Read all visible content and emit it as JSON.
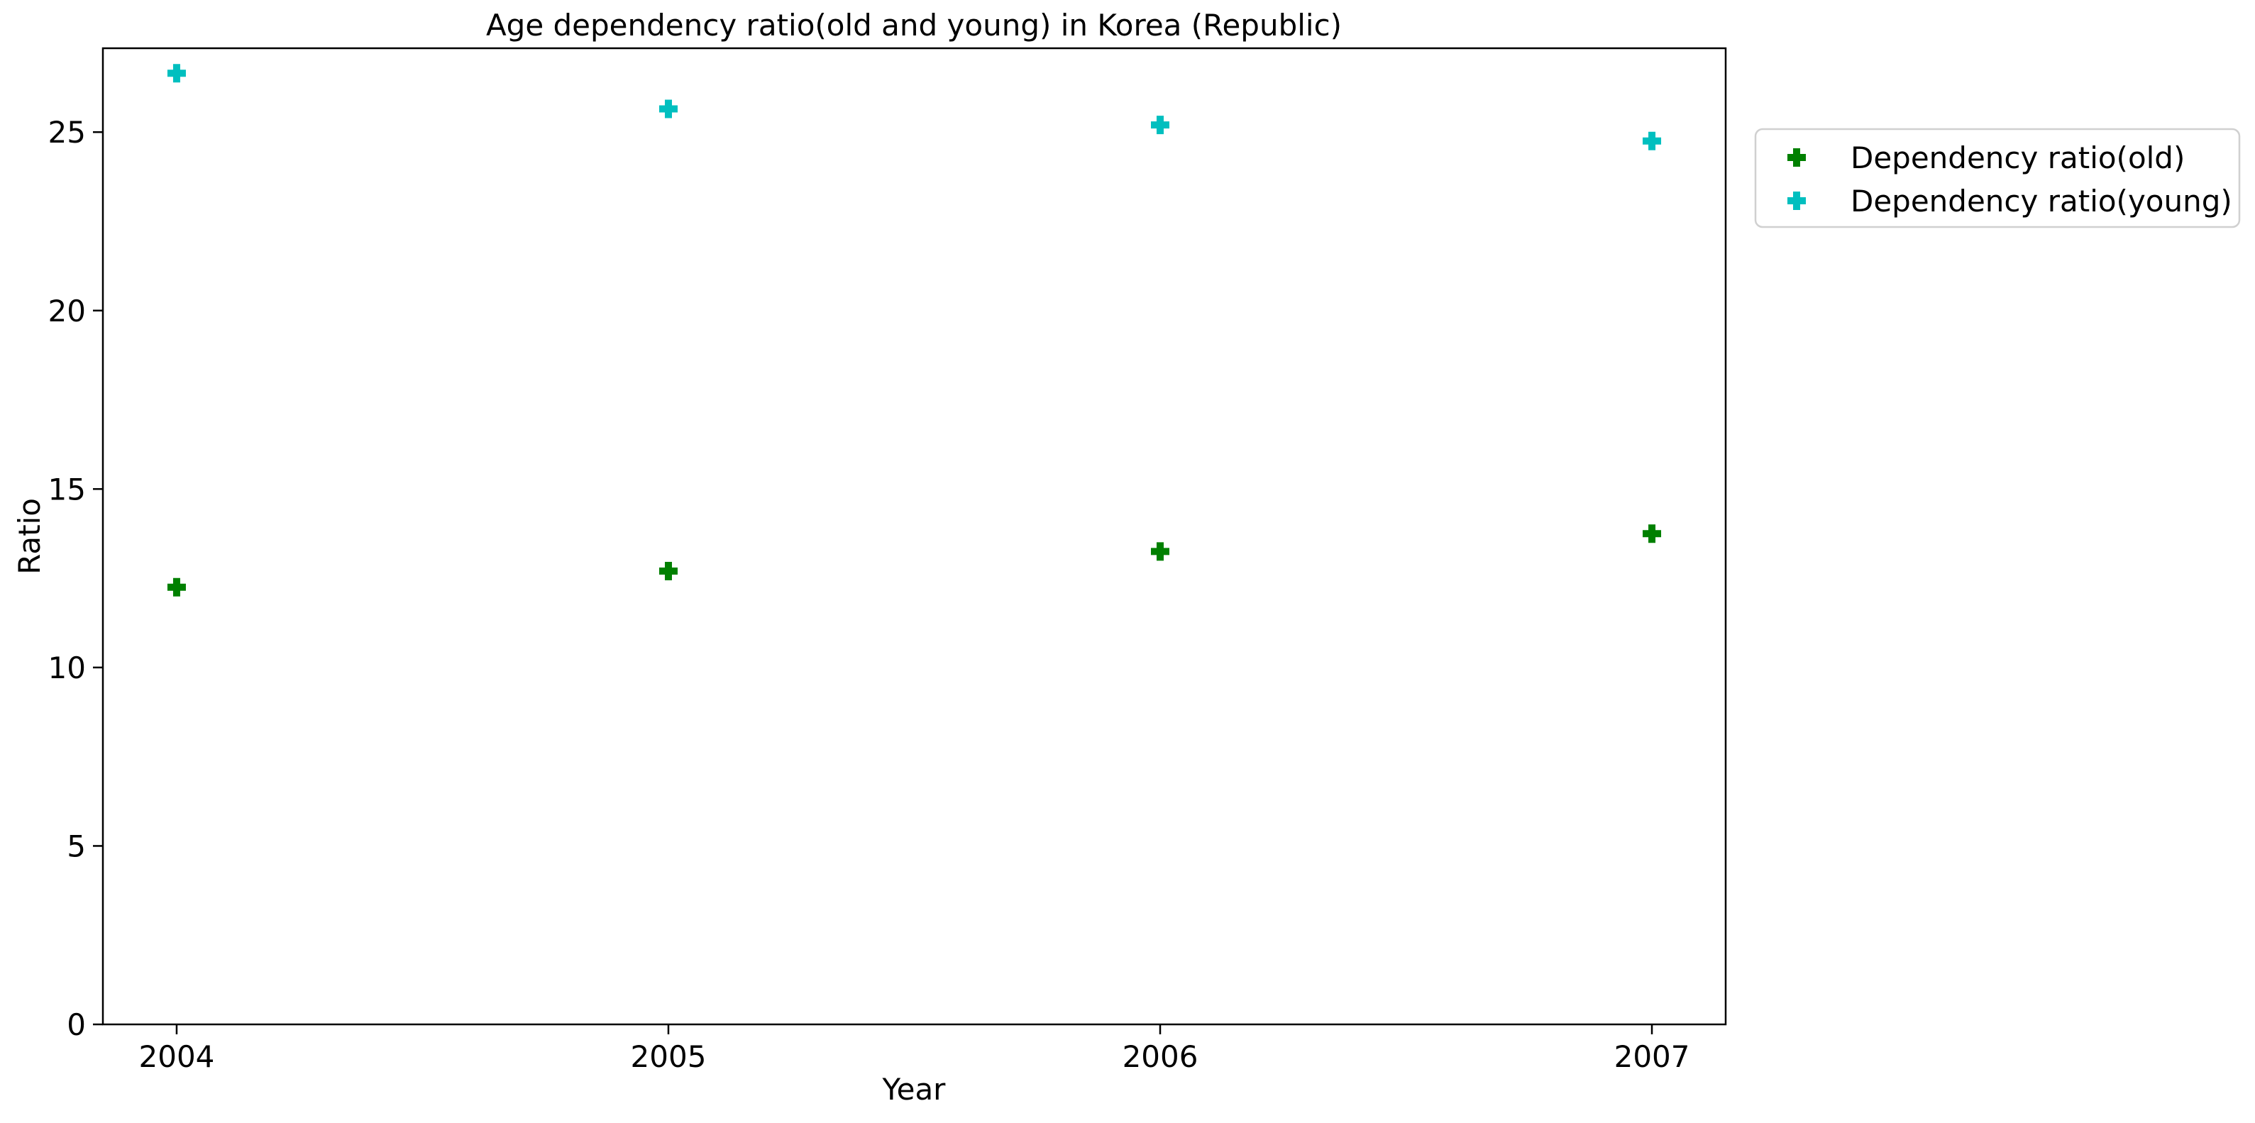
{
  "chart_data": {
    "type": "scatter",
    "title": "Age dependency ratio(old and young) in Korea (Republic)",
    "xlabel": "Year",
    "ylabel": "Ratio",
    "x": [
      2004,
      2005,
      2006,
      2007
    ],
    "x_tick_labels": [
      "2004",
      "2005",
      "2006",
      "2007"
    ],
    "xlim": [
      2003.85,
      2007.15
    ],
    "ylim": [
      0,
      27.35
    ],
    "y_ticks": [
      0,
      5,
      10,
      15,
      20,
      25
    ],
    "grid": false,
    "legend_position": "outside right, top",
    "marker": "plus-filled",
    "series": [
      {
        "name": "Dependency ratio(old)",
        "color": "#008000",
        "values": [
          12.25,
          12.7,
          13.25,
          13.75
        ]
      },
      {
        "name": "Dependency ratio(young)",
        "color": "#00bfbf",
        "values": [
          26.65,
          25.65,
          25.2,
          24.75
        ]
      }
    ]
  }
}
